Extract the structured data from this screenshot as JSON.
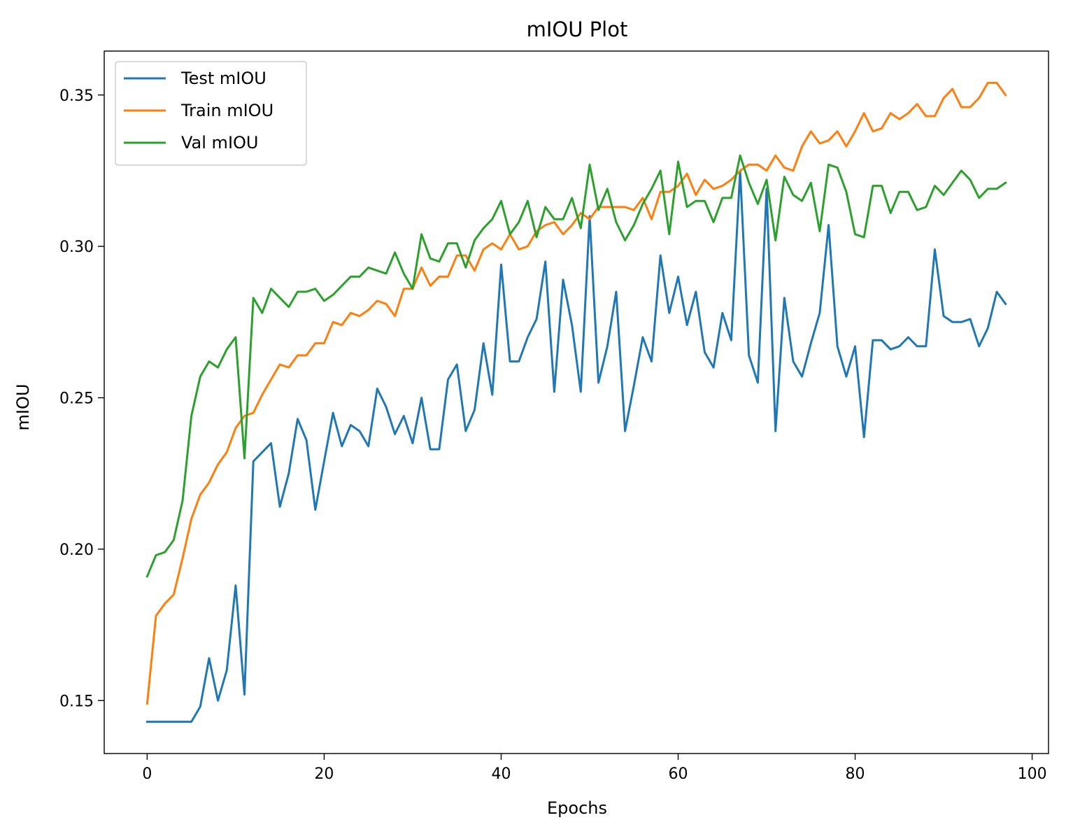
{
  "chart_data": {
    "type": "line",
    "title": "mIOU Plot",
    "xlabel": "Epochs",
    "ylabel": "mIOU",
    "xlim": [
      -4.85,
      101.85
    ],
    "ylim": [
      0.1325,
      0.3645
    ],
    "xticks": [
      0,
      20,
      40,
      60,
      80,
      100
    ],
    "yticks": [
      0.15,
      0.2,
      0.25,
      0.3,
      0.35
    ],
    "ytick_labels": [
      "0.15",
      "0.20",
      "0.25",
      "0.30",
      "0.35"
    ],
    "grid": false,
    "legend_position": "top-left",
    "x": [
      0,
      1,
      2,
      3,
      4,
      5,
      6,
      7,
      8,
      9,
      10,
      11,
      12,
      13,
      14,
      15,
      16,
      17,
      18,
      19,
      20,
      21,
      22,
      23,
      24,
      25,
      26,
      27,
      28,
      29,
      30,
      31,
      32,
      33,
      34,
      35,
      36,
      37,
      38,
      39,
      40,
      41,
      42,
      43,
      44,
      45,
      46,
      47,
      48,
      49,
      50,
      51,
      52,
      53,
      54,
      55,
      56,
      57,
      58,
      59,
      60,
      61,
      62,
      63,
      64,
      65,
      66,
      67,
      68,
      69,
      70,
      71,
      72,
      73,
      74,
      75,
      76,
      77,
      78,
      79,
      80,
      81,
      82,
      83,
      84,
      85,
      86,
      87,
      88,
      89,
      90,
      91,
      92,
      93,
      94,
      95,
      96,
      97
    ],
    "series": [
      {
        "name": "Test mIOU",
        "color": "#1f77b4",
        "values": [
          0.143,
          0.143,
          0.143,
          0.143,
          0.143,
          0.143,
          0.148,
          0.164,
          0.15,
          0.16,
          0.188,
          0.152,
          0.229,
          0.232,
          0.235,
          0.214,
          0.225,
          0.243,
          0.236,
          0.213,
          0.229,
          0.245,
          0.234,
          0.241,
          0.239,
          0.234,
          0.253,
          0.247,
          0.238,
          0.244,
          0.235,
          0.25,
          0.233,
          0.233,
          0.256,
          0.261,
          0.239,
          0.246,
          0.268,
          0.251,
          0.294,
          0.262,
          0.262,
          0.27,
          0.276,
          0.295,
          0.252,
          0.289,
          0.274,
          0.252,
          0.31,
          0.255,
          0.267,
          0.285,
          0.239,
          0.254,
          0.27,
          0.262,
          0.297,
          0.278,
          0.29,
          0.274,
          0.285,
          0.265,
          0.26,
          0.278,
          0.269,
          0.325,
          0.264,
          0.255,
          0.319,
          0.239,
          0.283,
          0.262,
          0.257,
          0.268,
          0.278,
          0.307,
          0.267,
          0.257,
          0.267,
          0.237,
          0.269,
          0.269,
          0.266,
          0.267,
          0.27,
          0.267,
          0.267,
          0.299,
          0.277,
          0.275,
          0.275,
          0.276,
          0.267,
          0.273,
          0.285,
          0.281
        ]
      },
      {
        "name": "Train mIOU",
        "color": "#ff7f0e",
        "values": [
          0.149,
          0.178,
          0.182,
          0.185,
          0.197,
          0.21,
          0.218,
          0.222,
          0.228,
          0.232,
          0.24,
          0.244,
          0.245,
          0.251,
          0.256,
          0.261,
          0.26,
          0.264,
          0.264,
          0.268,
          0.268,
          0.275,
          0.274,
          0.278,
          0.277,
          0.279,
          0.282,
          0.281,
          0.277,
          0.286,
          0.286,
          0.293,
          0.287,
          0.29,
          0.29,
          0.297,
          0.297,
          0.292,
          0.299,
          0.301,
          0.299,
          0.304,
          0.299,
          0.3,
          0.305,
          0.307,
          0.308,
          0.304,
          0.307,
          0.311,
          0.309,
          0.313,
          0.313,
          0.313,
          0.313,
          0.312,
          0.316,
          0.309,
          0.318,
          0.318,
          0.32,
          0.324,
          0.317,
          0.322,
          0.319,
          0.32,
          0.322,
          0.325,
          0.327,
          0.327,
          0.325,
          0.33,
          0.326,
          0.325,
          0.333,
          0.338,
          0.334,
          0.335,
          0.338,
          0.333,
          0.338,
          0.344,
          0.338,
          0.339,
          0.344,
          0.342,
          0.344,
          0.347,
          0.343,
          0.343,
          0.349,
          0.352,
          0.346,
          0.346,
          0.349,
          0.354,
          0.354,
          0.35
        ]
      },
      {
        "name": "Val mIOU",
        "color": "#2ca02c",
        "values": [
          0.191,
          0.198,
          0.199,
          0.203,
          0.216,
          0.244,
          0.257,
          0.262,
          0.26,
          0.266,
          0.27,
          0.23,
          0.283,
          0.278,
          0.286,
          0.283,
          0.28,
          0.285,
          0.285,
          0.286,
          0.282,
          0.284,
          0.287,
          0.29,
          0.29,
          0.293,
          0.292,
          0.291,
          0.298,
          0.291,
          0.286,
          0.304,
          0.296,
          0.295,
          0.301,
          0.301,
          0.293,
          0.302,
          0.306,
          0.309,
          0.315,
          0.304,
          0.308,
          0.315,
          0.303,
          0.313,
          0.309,
          0.309,
          0.316,
          0.306,
          0.327,
          0.312,
          0.319,
          0.308,
          0.302,
          0.307,
          0.314,
          0.319,
          0.325,
          0.304,
          0.328,
          0.313,
          0.315,
          0.315,
          0.308,
          0.316,
          0.316,
          0.33,
          0.321,
          0.314,
          0.322,
          0.302,
          0.323,
          0.317,
          0.315,
          0.321,
          0.305,
          0.327,
          0.326,
          0.318,
          0.304,
          0.303,
          0.32,
          0.32,
          0.311,
          0.318,
          0.318,
          0.312,
          0.313,
          0.32,
          0.317,
          0.321,
          0.325,
          0.322,
          0.316,
          0.319,
          0.319,
          0.321
        ]
      }
    ]
  }
}
